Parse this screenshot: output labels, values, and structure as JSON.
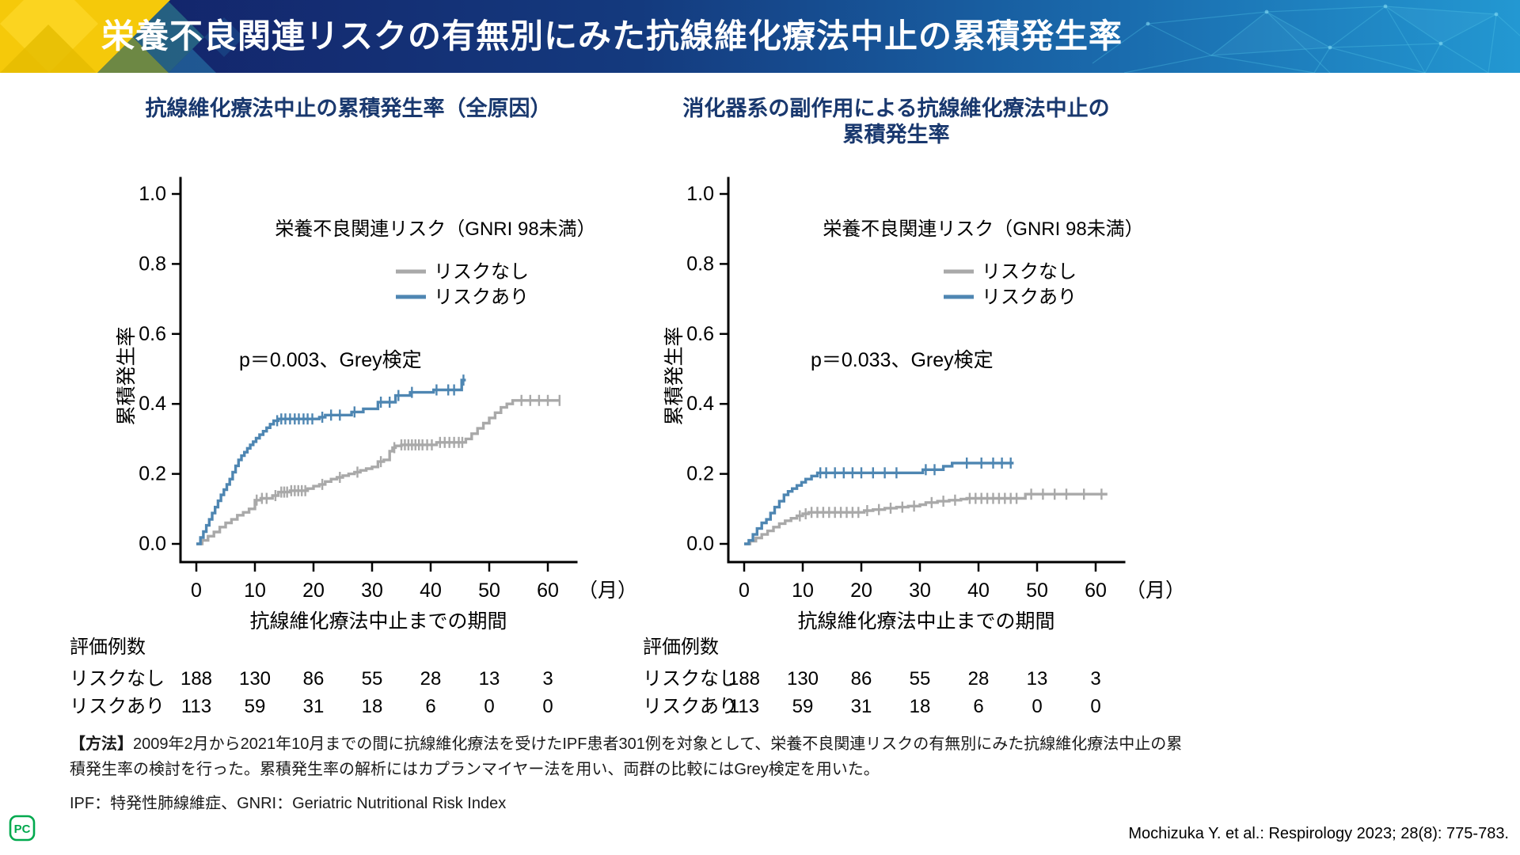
{
  "header": {
    "title": "栄養不良関連リスクの有無別にみた抗線維化療法中止の累積発生率",
    "colors": {
      "navy": "#131f66",
      "light_blue": "#2398d2",
      "yellow": "#f5c90a"
    }
  },
  "chart_data": [
    {
      "type": "line",
      "subtype": "cumulative-incidence-step",
      "title_lines": [
        "抗線維化療法中止の累積発生率（全原因）",
        ""
      ],
      "ylabel": "累積発生率",
      "xlabel": "抗線維化療法中止までの期間",
      "x_unit": "（月）",
      "xlim": [
        0,
        60
      ],
      "ylim": [
        0,
        1.0
      ],
      "xticks": [
        0,
        10,
        20,
        30,
        40,
        50,
        60
      ],
      "yticks": [
        0.0,
        0.2,
        0.4,
        0.6,
        0.8,
        1.0
      ],
      "grid": false,
      "legend_title": "栄養不良関連リスク（GNRI 98未満）",
      "legend_position": "upper-right-inside",
      "p_label": "p＝0.003、Grey検定",
      "series": [
        {
          "key": "risk_none",
          "name": "リスクなし",
          "color": "#a9a9a9",
          "points": [
            [
              0,
              0
            ],
            [
              1,
              0.01
            ],
            [
              2,
              0.022
            ],
            [
              3,
              0.034
            ],
            [
              4,
              0.048
            ],
            [
              5,
              0.06
            ],
            [
              6,
              0.07
            ],
            [
              7,
              0.082
            ],
            [
              8,
              0.09
            ],
            [
              9,
              0.1
            ],
            [
              10,
              0.125
            ],
            [
              11,
              0.13
            ],
            [
              13,
              0.138
            ],
            [
              14,
              0.148
            ],
            [
              16,
              0.152
            ],
            [
              19,
              0.158
            ],
            [
              20,
              0.165
            ],
            [
              21,
              0.17
            ],
            [
              22,
              0.178
            ],
            [
              23,
              0.185
            ],
            [
              24,
              0.19
            ],
            [
              25,
              0.195
            ],
            [
              26,
              0.2
            ],
            [
              27,
              0.205
            ],
            [
              28,
              0.21
            ],
            [
              29,
              0.215
            ],
            [
              30,
              0.22
            ],
            [
              31,
              0.235
            ],
            [
              32,
              0.24
            ],
            [
              33,
              0.265
            ],
            [
              33.5,
              0.275
            ],
            [
              34,
              0.28
            ],
            [
              35,
              0.283
            ],
            [
              41,
              0.29
            ],
            [
              45.5,
              0.29
            ],
            [
              46,
              0.3
            ],
            [
              47,
              0.315
            ],
            [
              48,
              0.33
            ],
            [
              49,
              0.345
            ],
            [
              50,
              0.36
            ],
            [
              51,
              0.375
            ],
            [
              52,
              0.39
            ],
            [
              53,
              0.4
            ],
            [
              54,
              0.41
            ],
            [
              62,
              0.41
            ]
          ],
          "censors": [
            10.3,
            11.2,
            12,
            13.5,
            14.5,
            15,
            15.5,
            16.2,
            16.8,
            17.4,
            18,
            18.6,
            21.5,
            24.5,
            27.5,
            31.5,
            33.8,
            35,
            35.6,
            36.2,
            36.8,
            37.4,
            38,
            38.6,
            39.4,
            40.2,
            41.6,
            42.4,
            43.2,
            44,
            44.8,
            45.4,
            55.5,
            57,
            58.5,
            60,
            62
          ]
        },
        {
          "key": "risk_present",
          "name": "リスクあり",
          "color": "#4e86b2",
          "points": [
            [
              0,
              0
            ],
            [
              0.7,
              0.018
            ],
            [
              1.2,
              0.035
            ],
            [
              1.7,
              0.053
            ],
            [
              2.2,
              0.07
            ],
            [
              2.7,
              0.088
            ],
            [
              3.2,
              0.105
            ],
            [
              3.7,
              0.123
            ],
            [
              4.2,
              0.14
            ],
            [
              4.7,
              0.155
            ],
            [
              5.2,
              0.17
            ],
            [
              5.7,
              0.185
            ],
            [
              6.2,
              0.205
            ],
            [
              6.7,
              0.223
            ],
            [
              7.2,
              0.24
            ],
            [
              7.7,
              0.252
            ],
            [
              8.2,
              0.262
            ],
            [
              8.7,
              0.273
            ],
            [
              9.2,
              0.283
            ],
            [
              9.7,
              0.292
            ],
            [
              10.2,
              0.302
            ],
            [
              10.8,
              0.312
            ],
            [
              11.4,
              0.322
            ],
            [
              12,
              0.332
            ],
            [
              12.6,
              0.342
            ],
            [
              13.2,
              0.352
            ],
            [
              14,
              0.357
            ],
            [
              20.5,
              0.357
            ],
            [
              21,
              0.362
            ],
            [
              22,
              0.368
            ],
            [
              26,
              0.368
            ],
            [
              26.5,
              0.377
            ],
            [
              28.5,
              0.386
            ],
            [
              30.5,
              0.386
            ],
            [
              31,
              0.405
            ],
            [
              33.5,
              0.405
            ],
            [
              34,
              0.424
            ],
            [
              36,
              0.424
            ],
            [
              36.5,
              0.433
            ],
            [
              40,
              0.433
            ],
            [
              40.5,
              0.44
            ],
            [
              45,
              0.44
            ],
            [
              45.3,
              0.468
            ],
            [
              46,
              0.468
            ]
          ],
          "censors": [
            13.8,
            14.5,
            15.2,
            16,
            16.8,
            17.5,
            18.3,
            19,
            19.8,
            21.5,
            23,
            24.5,
            27,
            31.5,
            33,
            34.5,
            36.8,
            41,
            43,
            44,
            45.6
          ]
        }
      ],
      "risk_table": {
        "title": "評価例数",
        "times": [
          0,
          10,
          20,
          30,
          40,
          50,
          60
        ],
        "rows": [
          {
            "label": "リスクなし",
            "counts": [
              188,
              130,
              86,
              55,
              28,
              13,
              3
            ]
          },
          {
            "label": "リスクあり",
            "counts": [
              113,
              59,
              31,
              18,
              6,
              0,
              0
            ]
          }
        ]
      }
    },
    {
      "type": "line",
      "subtype": "cumulative-incidence-step",
      "title_lines": [
        "消化器系の副作用による抗線維化療法中止の",
        "累積発生率"
      ],
      "ylabel": "累積発生率",
      "xlabel": "抗線維化療法中止までの期間",
      "x_unit": "（月）",
      "xlim": [
        0,
        60
      ],
      "ylim": [
        0,
        1.0
      ],
      "xticks": [
        0,
        10,
        20,
        30,
        40,
        50,
        60
      ],
      "yticks": [
        0.0,
        0.2,
        0.4,
        0.6,
        0.8,
        1.0
      ],
      "grid": false,
      "legend_title": "栄養不良関連リスク（GNRI 98未満）",
      "legend_position": "upper-right-inside",
      "p_label": "p＝0.033、Grey検定",
      "series": [
        {
          "key": "risk_none",
          "name": "リスクなし",
          "color": "#a9a9a9",
          "points": [
            [
              0,
              0
            ],
            [
              1,
              0.008
            ],
            [
              2,
              0.017
            ],
            [
              3,
              0.027
            ],
            [
              4,
              0.037
            ],
            [
              5,
              0.048
            ],
            [
              6,
              0.058
            ],
            [
              7,
              0.066
            ],
            [
              8,
              0.073
            ],
            [
              9,
              0.08
            ],
            [
              10,
              0.086
            ],
            [
              11,
              0.09
            ],
            [
              20,
              0.09
            ],
            [
              20.5,
              0.095
            ],
            [
              22,
              0.098
            ],
            [
              24,
              0.102
            ],
            [
              26,
              0.105
            ],
            [
              28,
              0.108
            ],
            [
              30,
              0.112
            ],
            [
              31,
              0.118
            ],
            [
              33,
              0.122
            ],
            [
              35,
              0.125
            ],
            [
              37,
              0.128
            ],
            [
              38,
              0.13
            ],
            [
              47,
              0.13
            ],
            [
              48,
              0.142
            ],
            [
              62,
              0.142
            ]
          ],
          "censors": [
            9.5,
            10.5,
            11.5,
            12.5,
            13.5,
            14.5,
            15.5,
            16.5,
            17.5,
            18.5,
            19.5,
            21,
            23,
            25,
            27,
            29,
            32,
            34,
            36,
            38.5,
            39.5,
            40.5,
            41.5,
            42.5,
            43.5,
            44.5,
            45.5,
            46.5,
            49,
            51,
            53,
            55,
            58,
            61
          ]
        },
        {
          "key": "risk_present",
          "name": "リスクあり",
          "color": "#4e86b2",
          "points": [
            [
              0,
              0
            ],
            [
              0.8,
              0.01
            ],
            [
              1.5,
              0.027
            ],
            [
              2.2,
              0.044
            ],
            [
              3,
              0.06
            ],
            [
              3.8,
              0.07
            ],
            [
              4.5,
              0.088
            ],
            [
              5.2,
              0.105
            ],
            [
              6,
              0.122
            ],
            [
              6.8,
              0.14
            ],
            [
              7.5,
              0.15
            ],
            [
              8.2,
              0.158
            ],
            [
              9,
              0.167
            ],
            [
              9.8,
              0.176
            ],
            [
              10.5,
              0.185
            ],
            [
              11.5,
              0.194
            ],
            [
              12.5,
              0.203
            ],
            [
              30,
              0.203
            ],
            [
              30.5,
              0.212
            ],
            [
              33.5,
              0.212
            ],
            [
              34,
              0.222
            ],
            [
              35.5,
              0.231
            ],
            [
              46,
              0.231
            ]
          ],
          "censors": [
            13,
            14,
            15.5,
            17,
            18.5,
            20,
            22,
            24,
            26,
            31,
            32.5,
            38,
            40.5,
            42.5,
            44,
            45.5
          ]
        }
      ],
      "risk_table": {
        "title": "評価例数",
        "times": [
          0,
          10,
          20,
          30,
          40,
          50,
          60
        ],
        "rows": [
          {
            "label": "リスクなし",
            "counts": [
              188,
              130,
              86,
              55,
              28,
              13,
              3
            ]
          },
          {
            "label": "リスクあり",
            "counts": [
              113,
              59,
              31,
              18,
              6,
              0,
              0
            ]
          }
        ]
      }
    }
  ],
  "footer": {
    "method_label": "【方法】",
    "method_body": "2009年2月から2021年10月までの間に抗線維化療法を受けたIPF患者301例を対象として、栄養不良関連リスクの有無別にみた抗線維化療法中止の累積発生率の検討を行った。累積発生率の解析にはカプランマイヤー法を用い、両群の比較にはGrey検定を用いた。",
    "abbreviations": "IPF：特発性肺線維症、GNRI：Geriatric Nutritional Risk Index",
    "citation": "Mochizuka Y. et al.: Respirology 2023; 28(8): 775-783.",
    "logo_text": "PC",
    "logo_color": "#00a94e"
  }
}
